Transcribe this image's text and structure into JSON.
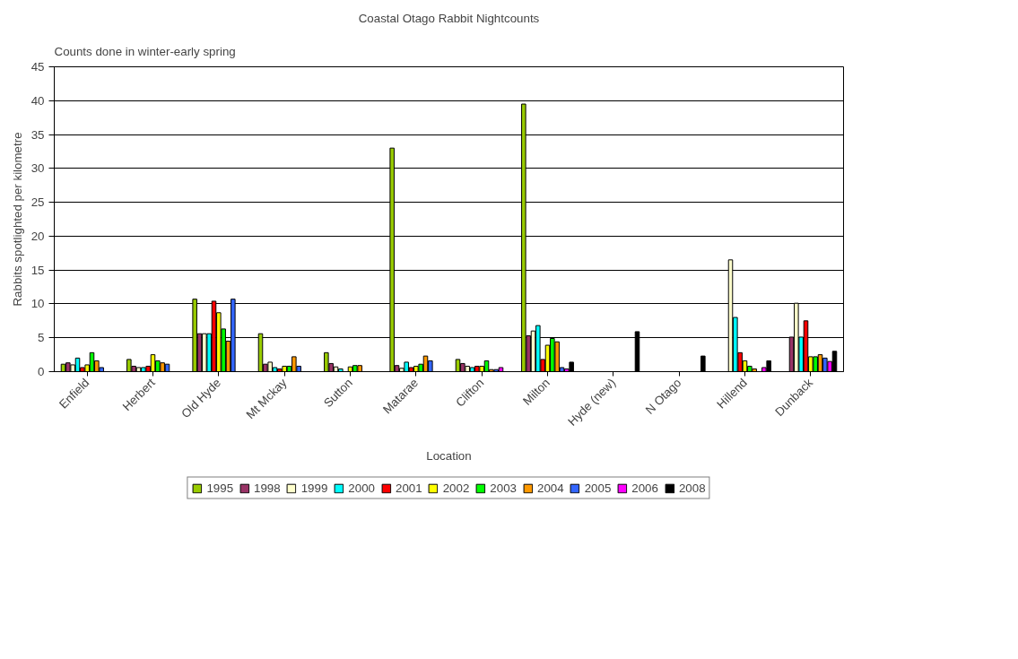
{
  "chart_data": {
    "type": "bar",
    "title": "Coastal Otago Rabbit Nightcounts",
    "subtitle": "Counts done in winter-early spring",
    "xlabel": "Location",
    "ylabel": "Rabbits spotlighted per kilometre",
    "categories": [
      "Enfield",
      "Herbert",
      "Old Hyde",
      "Mt Mckay",
      "Sutton",
      "Matarae",
      "Clifton",
      "Milton",
      "Hyde (new)",
      "N Otago",
      "Hillend",
      "Dunback"
    ],
    "ylim": [
      0,
      45
    ],
    "yticks": [
      0,
      5,
      10,
      15,
      20,
      25,
      30,
      35,
      40,
      45
    ],
    "grid": "y",
    "legend": "bottom",
    "series": [
      {
        "name": "1995",
        "color": "#99cc00",
        "values": [
          1.1,
          1.8,
          10.7,
          5.6,
          2.8,
          33,
          1.8,
          39.5,
          null,
          null,
          null,
          null
        ]
      },
      {
        "name": "1998",
        "color": "#993366",
        "values": [
          1.3,
          0.8,
          5.6,
          1.1,
          1.2,
          0.9,
          1.2,
          5.3,
          null,
          null,
          null,
          5.1
        ]
      },
      {
        "name": "1999",
        "color": "#ffffcc",
        "values": [
          1.0,
          0.6,
          5.6,
          1.4,
          0.7,
          0.5,
          0.8,
          6.0,
          null,
          null,
          16.5,
          10.1
        ]
      },
      {
        "name": "2000",
        "color": "#00ffff",
        "values": [
          2.0,
          0.6,
          5.6,
          0.6,
          0.4,
          1.4,
          0.6,
          6.8,
          null,
          null,
          8.0,
          5.1
        ]
      },
      {
        "name": "2001",
        "color": "#ff0000",
        "values": [
          0.6,
          0.8,
          10.4,
          0.4,
          null,
          0.6,
          0.8,
          1.8,
          null,
          null,
          2.8,
          7.5
        ]
      },
      {
        "name": "2002",
        "color": "#ffff00",
        "values": [
          1.0,
          2.5,
          8.7,
          0.8,
          0.7,
          0.8,
          0.8,
          3.9,
          null,
          null,
          1.6,
          2.2
        ]
      },
      {
        "name": "2003",
        "color": "#00ff00",
        "values": [
          2.8,
          1.6,
          6.3,
          0.8,
          0.9,
          1.1,
          1.6,
          4.9,
          null,
          null,
          0.8,
          2.2
        ]
      },
      {
        "name": "2004",
        "color": "#ff9900",
        "values": [
          1.6,
          1.3,
          4.5,
          2.2,
          0.9,
          2.3,
          0.3,
          4.4,
          null,
          null,
          0.4,
          2.5
        ]
      },
      {
        "name": "2005",
        "color": "#3366ff",
        "values": [
          0.6,
          1.1,
          10.7,
          0.8,
          null,
          1.6,
          0.3,
          0.6,
          null,
          null,
          null,
          2.0
        ]
      },
      {
        "name": "2006",
        "color": "#ff00ff",
        "values": [
          null,
          null,
          null,
          null,
          null,
          null,
          0.6,
          0.4,
          null,
          null,
          0.6,
          1.5
        ]
      },
      {
        "name": "2008",
        "color": "#000000",
        "values": [
          null,
          null,
          null,
          null,
          null,
          null,
          null,
          1.4,
          5.9,
          2.3,
          1.6,
          3.0
        ]
      }
    ]
  }
}
